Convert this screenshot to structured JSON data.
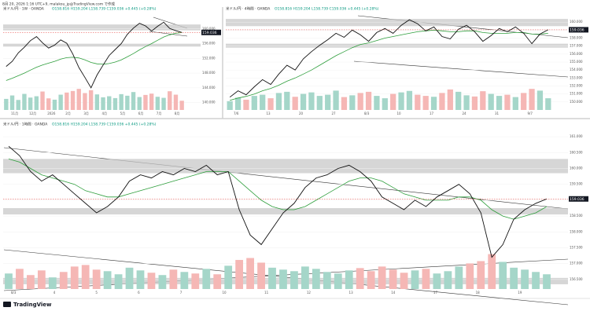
{
  "header": {
    "caption": "8月 20, 2026 1:16 UTC+9, malakou_jp@TradingView.com で作成"
  },
  "footer": {
    "brand": "TradingView"
  },
  "panels": [
    {
      "legend": "米ドル/円 · 1W · OANDA",
      "ohlc": "O158.816 H159.204 L158.739 C159.036 +0.445 (+0.28%)",
      "price_label": "159.036",
      "ylim": [
        138,
        164
      ],
      "yticks": [
        {
          "value": 140,
          "label": "140.000"
        },
        {
          "value": 144,
          "label": "144.000"
        },
        {
          "value": 148,
          "label": "148.000"
        },
        {
          "value": 152,
          "label": "152.000"
        },
        {
          "value": 156,
          "label": "156.000"
        },
        {
          "value": 160,
          "label": "160.000"
        }
      ],
      "time_labels": [
        "11月",
        "12月",
        "2026",
        "2月",
        "3月",
        "4月",
        "5月",
        "6月",
        "7月",
        "8月"
      ],
      "zones": [
        [
          159.6,
          161.2
        ],
        [
          155.2,
          156.0
        ]
      ],
      "close": [
        149.8,
        151.2,
        153.5,
        155.0,
        156.8,
        157.9,
        156.2,
        154.8,
        155.6,
        157.0,
        156.1,
        153.2,
        149.5,
        146.8,
        144.0,
        147.5,
        150.2,
        152.8,
        154.4,
        156.0,
        158.5,
        160.2,
        161.5,
        160.8,
        159.4,
        160.7,
        161.8,
        160.1,
        159.5,
        159.04
      ],
      "ma": [
        146.0,
        146.6,
        147.3,
        148.0,
        148.8,
        149.6,
        150.2,
        150.7,
        151.2,
        151.8,
        152.2,
        152.3,
        152.1,
        151.6,
        150.9,
        150.5,
        150.4,
        150.6,
        151.0,
        151.6,
        152.4,
        153.3,
        154.3,
        155.2,
        156.0,
        156.9,
        157.8,
        158.4,
        158.8,
        159.0
      ],
      "volume": [
        42,
        55,
        38,
        61,
        47,
        52,
        70,
        44,
        39,
        58,
        66,
        72,
        80,
        64,
        75,
        59,
        48,
        52,
        45,
        60,
        54,
        68,
        49,
        57,
        62,
        50,
        46,
        71,
        58,
        35
      ]
    },
    {
      "legend": "米ドル/円 · 4時間 · OANDA",
      "ohlc": "O158.816 H159.204 L158.739 C159.036 +0.445 (+0.28%)",
      "price_label": "159.036",
      "ylim": [
        149,
        161
      ],
      "yticks": [
        {
          "value": 150,
          "label": "150.000"
        },
        {
          "value": 151,
          "label": "151.000"
        },
        {
          "value": 152,
          "label": "152.000"
        },
        {
          "value": 153,
          "label": "153.000"
        },
        {
          "value": 154,
          "label": "154.000"
        },
        {
          "value": 155,
          "label": "155.000"
        },
        {
          "value": 156,
          "label": "156.000"
        },
        {
          "value": 157,
          "label": "157.000"
        },
        {
          "value": 158,
          "label": "158.000"
        },
        {
          "value": 159,
          "label": "159.000"
        },
        {
          "value": 160,
          "label": "160.000"
        }
      ],
      "time_labels": [
        "7/6",
        "13",
        "20",
        "27",
        "8/3",
        "10",
        "17",
        "24",
        "31",
        "9/7"
      ],
      "zones": [
        [
          159.5,
          160.4
        ],
        [
          156.8,
          157.3
        ]
      ],
      "close": [
        150.6,
        151.4,
        150.9,
        151.9,
        152.8,
        152.2,
        153.5,
        154.6,
        154.0,
        155.4,
        156.3,
        157.1,
        157.8,
        158.6,
        158.1,
        159.0,
        158.4,
        157.6,
        158.7,
        159.2,
        158.6,
        159.6,
        160.3,
        159.8,
        158.9,
        159.4,
        158.2,
        157.9,
        159.1,
        159.6,
        158.8,
        157.6,
        158.3,
        159.2,
        158.8,
        159.4,
        158.6,
        157.3,
        158.5,
        159.04
      ],
      "ma": [
        150.2,
        150.5,
        150.7,
        151.0,
        151.4,
        151.7,
        152.1,
        152.6,
        153.0,
        153.5,
        154.0,
        154.6,
        155.2,
        155.8,
        156.3,
        156.8,
        157.2,
        157.4,
        157.7,
        158.0,
        158.2,
        158.4,
        158.6,
        158.8,
        158.9,
        159.0,
        158.9,
        158.8,
        158.8,
        158.9,
        158.9,
        158.7,
        158.6,
        158.6,
        158.6,
        158.7,
        158.7,
        158.5,
        158.5,
        158.6
      ],
      "volume": [
        30,
        42,
        35,
        48,
        52,
        40,
        58,
        62,
        45,
        55,
        60,
        48,
        52,
        66,
        44,
        50,
        58,
        62,
        48,
        40,
        55,
        60,
        65,
        52,
        48,
        45,
        58,
        70,
        62,
        50,
        46,
        64,
        55,
        48,
        52,
        44,
        58,
        72,
        66,
        40
      ]
    },
    {
      "legend": "米ドル/円 · 1時間 · OANDA",
      "ohlc": "O158.816 H159.204 L158.739 C159.036 +0.445 (+0.28%)",
      "price_label": "159.036",
      "ylim": [
        156.2,
        161.2
      ],
      "yticks": [
        {
          "value": 156.5,
          "label": "156.500"
        },
        {
          "value": 157,
          "label": "157.000"
        },
        {
          "value": 157.5,
          "label": "157.500"
        },
        {
          "value": 158,
          "label": "158.000"
        },
        {
          "value": 158.5,
          "label": "158.500"
        },
        {
          "value": 159,
          "label": "159.000"
        },
        {
          "value": 159.5,
          "label": "159.500"
        },
        {
          "value": 160,
          "label": "160.000"
        },
        {
          "value": 160.5,
          "label": "160.500"
        },
        {
          "value": 161,
          "label": "161.000"
        }
      ],
      "time_labels": [
        "8/3",
        "4",
        "5",
        "6",
        "7",
        "10",
        "11",
        "12",
        "13",
        "14",
        "17",
        "18",
        "19"
      ],
      "zones": [
        [
          159.85,
          160.3
        ],
        [
          158.55,
          158.75
        ],
        [
          156.35,
          156.55
        ]
      ],
      "close": [
        160.7,
        160.4,
        159.9,
        159.6,
        159.8,
        159.5,
        159.2,
        158.9,
        158.6,
        158.8,
        159.1,
        159.6,
        159.8,
        159.7,
        159.9,
        159.8,
        160.0,
        159.9,
        160.1,
        159.8,
        159.9,
        158.7,
        157.9,
        157.6,
        158.1,
        158.6,
        158.9,
        159.4,
        159.7,
        159.8,
        160.0,
        160.1,
        159.9,
        159.6,
        159.1,
        158.9,
        158.7,
        159.0,
        158.8,
        159.1,
        159.3,
        159.5,
        159.2,
        158.6,
        157.2,
        157.6,
        158.4,
        158.7,
        158.9,
        159.04
      ],
      "ma": [
        160.3,
        160.2,
        160.0,
        159.8,
        159.7,
        159.6,
        159.5,
        159.3,
        159.2,
        159.1,
        159.1,
        159.2,
        159.3,
        159.4,
        159.5,
        159.6,
        159.7,
        159.8,
        159.9,
        159.9,
        159.9,
        159.6,
        159.3,
        159.0,
        158.8,
        158.7,
        158.7,
        158.8,
        159.0,
        159.2,
        159.4,
        159.6,
        159.7,
        159.7,
        159.6,
        159.4,
        159.2,
        159.1,
        159.0,
        159.0,
        159.0,
        159.1,
        159.1,
        159.0,
        158.7,
        158.5,
        158.4,
        158.5,
        158.6,
        158.8
      ],
      "volume": [
        40,
        52,
        36,
        48,
        30,
        44,
        58,
        62,
        50,
        46,
        38,
        55,
        48,
        42,
        36,
        50,
        44,
        40,
        52,
        38,
        60,
        75,
        80,
        68,
        55,
        50,
        46,
        58,
        52,
        44,
        40,
        48,
        54,
        46,
        58,
        50,
        42,
        48,
        52,
        40,
        46,
        58,
        66,
        72,
        90,
        70,
        55,
        50,
        44,
        38
      ]
    }
  ]
}
